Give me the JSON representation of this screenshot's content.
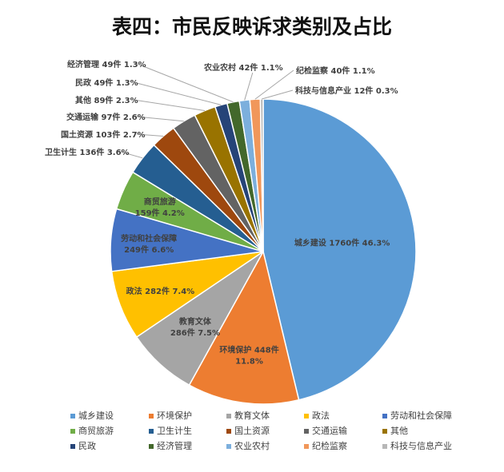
{
  "chart_data": {
    "type": "pie",
    "title": "表四：市民反映诉求类别及占比",
    "start_angle_deg": 0,
    "direction": "clockwise",
    "legend_position": "bottom",
    "slices": [
      {
        "name": "城乡建设",
        "count": 1760,
        "unit": "件",
        "percent": "46.3%",
        "value": 46.3,
        "color": "#5b9bd5"
      },
      {
        "name": "环境保护",
        "count": 448,
        "unit": "件",
        "percent": "11.8%",
        "value": 11.8,
        "color": "#ed7d31"
      },
      {
        "name": "教育文体",
        "count": 286,
        "unit": "件",
        "percent": "7.5%",
        "value": 7.5,
        "color": "#a5a5a5"
      },
      {
        "name": "政法",
        "count": 282,
        "unit": "件",
        "percent": "7.4%",
        "value": 7.4,
        "color": "#ffc000"
      },
      {
        "name": "劳动和社会保障",
        "count": 249,
        "unit": "件",
        "percent": "6.6%",
        "value": 6.6,
        "color": "#4472c4"
      },
      {
        "name": "商贸旅游",
        "count": 159,
        "unit": "件",
        "percent": "4.2%",
        "value": 4.2,
        "color": "#70ad47"
      },
      {
        "name": "卫生计生",
        "count": 136,
        "unit": "件",
        "percent": "3.6%",
        "value": 3.6,
        "color": "#255e91"
      },
      {
        "name": "国土资源",
        "count": 103,
        "unit": "件",
        "percent": "2.7%",
        "value": 2.7,
        "color": "#9e480e"
      },
      {
        "name": "交通运输",
        "count": 97,
        "unit": "件",
        "percent": "2.6%",
        "value": 2.6,
        "color": "#636363"
      },
      {
        "name": "其他",
        "count": 89,
        "unit": "件",
        "percent": "2.3%",
        "value": 2.3,
        "color": "#997300"
      },
      {
        "name": "民政",
        "count": 49,
        "unit": "件",
        "percent": "1.3%",
        "value": 1.3,
        "color": "#264478"
      },
      {
        "name": "经济管理",
        "count": 49,
        "unit": "件",
        "percent": "1.3%",
        "value": 1.3,
        "color": "#43682b"
      },
      {
        "name": "农业农村",
        "count": 42,
        "unit": "件",
        "percent": "1.1%",
        "value": 1.1,
        "color": "#7cafdd"
      },
      {
        "name": "纪检监察",
        "count": 40,
        "unit": "件",
        "percent": "1.1%",
        "value": 1.1,
        "color": "#f1975a"
      },
      {
        "name": "科技与信息产业",
        "count": 12,
        "unit": "件",
        "percent": "0.3%",
        "value": 0.3,
        "color": "#b7b7b7"
      }
    ]
  }
}
